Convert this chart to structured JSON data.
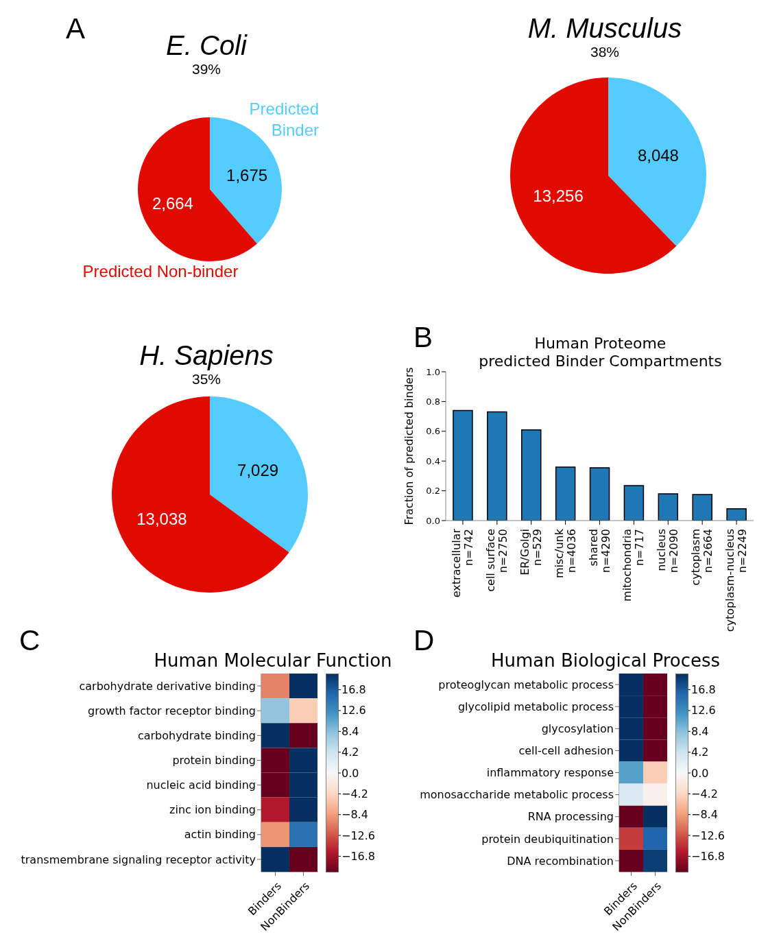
{
  "chart_data": [
    {
      "type": "pie",
      "title": "E. Coli",
      "subtitle": "39%",
      "categories": [
        "Predicted\nBinder",
        "Predicted Non-binder"
      ],
      "values": [
        1675,
        2664
      ],
      "value_labels": [
        "1,675",
        "2,664"
      ],
      "colors": [
        "#55ccff",
        "#e00a00"
      ],
      "annotations": [
        "A"
      ]
    },
    {
      "type": "pie",
      "title": "M. Musculus",
      "subtitle": "38%",
      "categories": [
        null,
        null
      ],
      "values": [
        8048,
        13256
      ],
      "value_labels": [
        "8,048",
        "13,256"
      ],
      "colors": [
        "#55ccff",
        "#e00a00"
      ]
    },
    {
      "type": "pie",
      "title": "H. Sapiens",
      "subtitle": "35%",
      "categories": [
        null,
        null
      ],
      "values": [
        7029,
        13038
      ],
      "value_labels": [
        "7,029",
        "13,038"
      ],
      "colors": [
        "#55ccff",
        "#e00a00"
      ]
    },
    {
      "type": "bar",
      "title": "Human Proteome\npredicted Binder Compartments",
      "ylabel": "Fraction of predicted binders",
      "categories": [
        "extracellular\nn=742",
        "cell surface\nn=2750",
        "ER/Golgi\nn=529",
        "misc/unk\nn=4036",
        "shared\nn=4290",
        "mitochondria\nn=717",
        "nucleus\nn=2090",
        "cytoplasm\nn=2664",
        "cytoplasm-nucleus\nn=2249"
      ],
      "values": [
        0.74,
        0.73,
        0.61,
        0.36,
        0.355,
        0.235,
        0.18,
        0.175,
        0.08
      ],
      "color": "#1f77b4",
      "ylim": [
        0,
        1
      ],
      "yticks": [
        {
          "value": 0,
          "label": "0.0"
        },
        0.2,
        0.4,
        0.6,
        0.8,
        {
          "value": 1,
          "label": "1.0"
        }
      ],
      "annotations": [
        "B"
      ]
    },
    {
      "type": "heatmap",
      "title": "Human Molecular Function",
      "categories": [
        "Binders",
        "NonBinders"
      ],
      "y_categories": [
        "carbohydrate derivative binding",
        "growth factor receptor binding",
        "carbohydrate binding",
        "protein binding",
        "nucleic acid binding",
        "zinc ion binding",
        "actin binding",
        "transmembrane signaling receptor activity"
      ],
      "cells": [
        [
          -10,
          20
        ],
        [
          8,
          -5
        ],
        [
          20,
          -20
        ],
        [
          -20,
          20
        ],
        [
          -20,
          20
        ],
        [
          -16,
          20
        ],
        [
          -9,
          15
        ],
        [
          20,
          -20
        ]
      ],
      "clim": [
        -20,
        20
      ],
      "cticks": [
        16.8,
        12.6,
        8.4,
        4.2,
        {
          "value": 0,
          "label": "0.0"
        },
        {
          "value": -4.2,
          "label": "−4.2"
        },
        {
          "value": -8.4,
          "label": "−8.4"
        },
        {
          "value": -12.6,
          "label": "−12.6"
        },
        {
          "value": -16.8,
          "label": "−16.8"
        }
      ],
      "annotations": [
        "C"
      ]
    },
    {
      "type": "heatmap",
      "title": "Human Biological Process",
      "categories": [
        "Binders",
        "NonBinders"
      ],
      "y_categories": [
        "proteoglycan metabolic process",
        "glycolipid metabolic process",
        "glycosylation",
        "cell-cell adhesion",
        "inflammatory response",
        "monosaccharide metabolic process",
        "RNA processing",
        "protein deubiquitination",
        "DNA recombination"
      ],
      "cells": [
        [
          20,
          -20
        ],
        [
          20,
          -20
        ],
        [
          20,
          -20
        ],
        [
          20,
          -20
        ],
        [
          11,
          -5
        ],
        [
          3,
          -1
        ],
        [
          -20,
          20
        ],
        [
          -14,
          16
        ],
        [
          -20,
          19
        ]
      ],
      "clim": [
        -20,
        20
      ],
      "cticks": [
        16.8,
        12.6,
        8.4,
        4.2,
        {
          "value": 0,
          "label": "0.0"
        },
        {
          "value": -4.2,
          "label": "−4.2"
        },
        {
          "value": -8.4,
          "label": "−8.4"
        },
        {
          "value": -12.6,
          "label": "−12.6"
        },
        {
          "value": -16.8,
          "label": "−16.8"
        }
      ],
      "annotations": [
        "D"
      ]
    }
  ]
}
